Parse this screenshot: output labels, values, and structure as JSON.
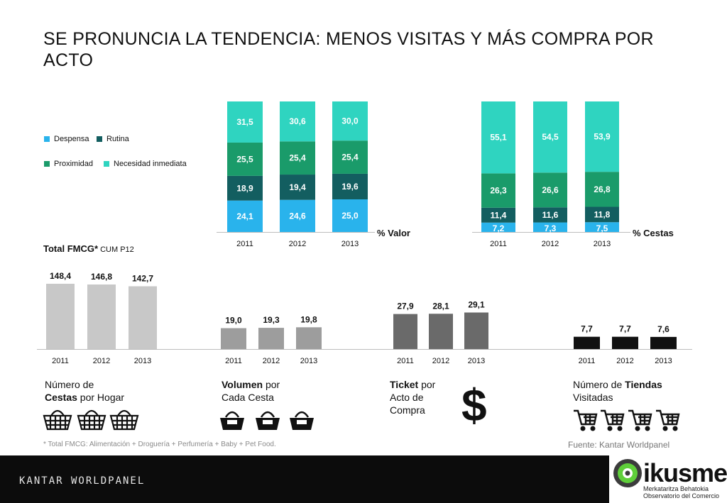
{
  "title": "SE PRONUNCIA LA TENDENCIA: MENOS VISITAS Y MÁS COMPRA POR ACTO",
  "legend": [
    {
      "name": "Despensa",
      "color": "#29b3ec"
    },
    {
      "name": "Rutina",
      "color": "#135e60"
    },
    {
      "name": "Proximidad",
      "color": "#1a9b6a"
    },
    {
      "name": "Necesidad inmediata",
      "color": "#2fd4c0"
    }
  ],
  "colors": {
    "despensa": "#29b3ec",
    "rutina": "#135e60",
    "proximidad": "#1a9b6a",
    "necesidad": "#2fd4c0",
    "gris_claro": "#c8c8c8",
    "gris_medio": "#9d9d9d",
    "gris_oscuro": "#6a6a6a",
    "negro": "#111111"
  },
  "total_fmcg": {
    "bold": "Total FMCG*",
    "rest": " CUM P12"
  },
  "chart_data": [
    {
      "type": "bar",
      "stacked": true,
      "label": "% Valor",
      "categories": [
        "2011",
        "2012",
        "2013"
      ],
      "series": [
        {
          "name": "Despensa",
          "values": [
            24.1,
            24.6,
            25.0
          ],
          "labels": [
            "24,1",
            "24,6",
            "25,0"
          ]
        },
        {
          "name": "Rutina",
          "values": [
            18.9,
            19.4,
            19.6
          ],
          "labels": [
            "18,9",
            "19,4",
            "19,6"
          ]
        },
        {
          "name": "Proximidad",
          "values": [
            25.5,
            25.4,
            25.4
          ],
          "labels": [
            "25,5",
            "25,4",
            "25,4"
          ]
        },
        {
          "name": "Necesidad inmediata",
          "values": [
            31.5,
            30.6,
            30.0
          ],
          "labels": [
            "31,5",
            "30,6",
            "30,0"
          ]
        }
      ]
    },
    {
      "type": "bar",
      "stacked": true,
      "label": "% Cestas",
      "categories": [
        "2011",
        "2012",
        "2013"
      ],
      "series": [
        {
          "name": "Despensa",
          "values": [
            7.2,
            7.3,
            7.5
          ],
          "labels": [
            "7,2",
            "7,3",
            "7,5"
          ]
        },
        {
          "name": "Rutina",
          "values": [
            11.4,
            11.6,
            11.8
          ],
          "labels": [
            "11,4",
            "11,6",
            "11,8"
          ]
        },
        {
          "name": "Proximidad",
          "values": [
            26.3,
            26.6,
            26.8
          ],
          "labels": [
            "26,3",
            "26,6",
            "26,8"
          ]
        },
        {
          "name": "Necesidad inmediata",
          "values": [
            55.1,
            54.5,
            53.9
          ],
          "labels": [
            "55,1",
            "54,5",
            "53,9"
          ]
        }
      ]
    },
    {
      "type": "bar",
      "metric": "Número de Cestas por Hogar",
      "categories": [
        "2011",
        "2012",
        "2013"
      ],
      "values": [
        148.4,
        146.8,
        142.7
      ],
      "labels": [
        "148,4",
        "146,8",
        "142,7"
      ]
    },
    {
      "type": "bar",
      "metric": "Volumen por Cada Cesta",
      "categories": [
        "2011",
        "2012",
        "2013"
      ],
      "values": [
        19.0,
        19.3,
        19.8
      ],
      "labels": [
        "19,0",
        "19,3",
        "19,8"
      ]
    },
    {
      "type": "bar",
      "metric": "Ticket por Acto de Compra",
      "categories": [
        "2011",
        "2012",
        "2013"
      ],
      "values": [
        27.9,
        28.1,
        29.1
      ],
      "labels": [
        "27,9",
        "28,1",
        "29,1"
      ]
    },
    {
      "type": "bar",
      "metric": "Número de Tiendas Visitadas",
      "categories": [
        "2011",
        "2012",
        "2013"
      ],
      "values": [
        7.7,
        7.7,
        7.6
      ],
      "labels": [
        "7,7",
        "7,7",
        "7,6"
      ]
    }
  ],
  "captions": {
    "cestas": {
      "l1": "Número de",
      "l2b": "Cestas",
      "l2": " por Hogar"
    },
    "volumen": {
      "l1b": "Volumen",
      "l1": " por",
      "l2": "Cada Cesta"
    },
    "ticket": {
      "l1b": "Ticket",
      "l1": " por",
      "l2": "Acto de",
      "l3": "Compra"
    },
    "tiendas": {
      "l1": "Número de ",
      "l1b": "Tiendas",
      "l2": "Visitadas"
    }
  },
  "icons": [
    "basket-icon",
    "shopping-cart-icon",
    "dollar-icon"
  ],
  "dollar": "$",
  "footnote": "* Total FMCG: Alimentación + Droguería + Perfumería + Baby + Pet Food.",
  "source": "Fuente: Kantar Worldpanel",
  "footer": {
    "brand": "KANTAR WORLDPANEL",
    "logo": "ikusmer",
    "logo_sub1": "Merkataritza Behatokia",
    "logo_sub2": "Observatorio del Comercio"
  }
}
